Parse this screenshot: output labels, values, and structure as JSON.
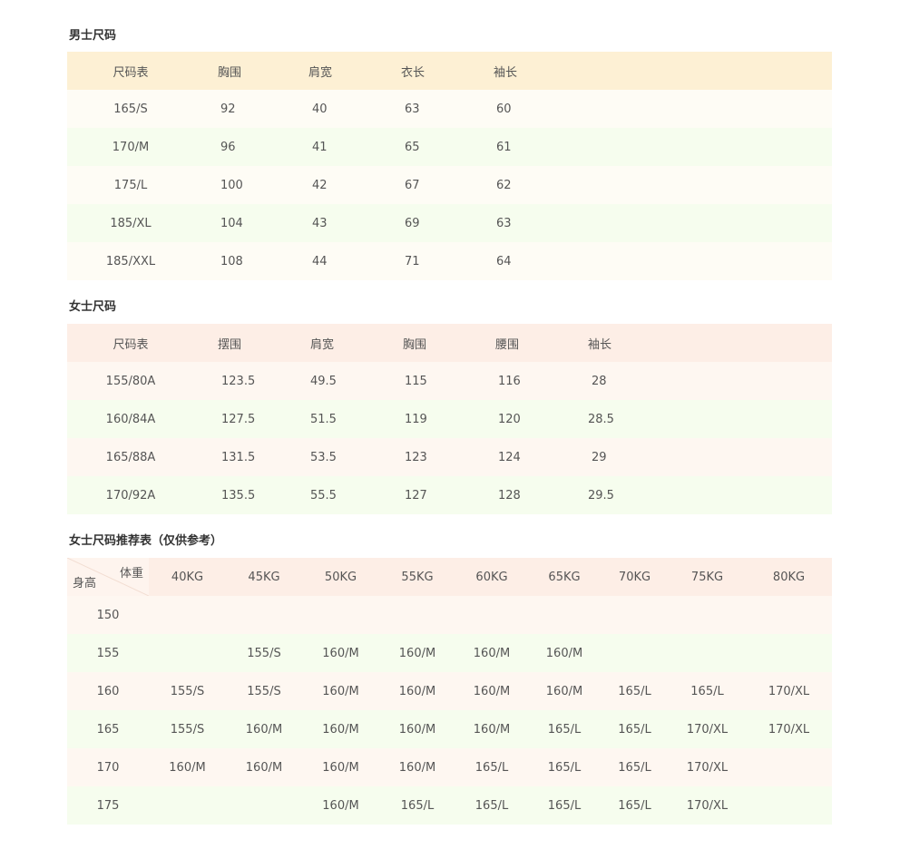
{
  "men": {
    "title": "男士尺码",
    "headers": [
      "尺码表",
      "胸围",
      "肩宽",
      "衣长",
      "袖长"
    ],
    "rows": [
      [
        "165/S",
        "92",
        "40",
        "63",
        "60"
      ],
      [
        "170/M",
        "96",
        "41",
        "65",
        "61"
      ],
      [
        "175/L",
        "100",
        "42",
        "67",
        "62"
      ],
      [
        "185/XL",
        "104",
        "43",
        "69",
        "63"
      ],
      [
        "185/XXL",
        "108",
        "44",
        "71",
        "64"
      ]
    ]
  },
  "women": {
    "title": "女士尺码",
    "headers": [
      "尺码表",
      "摆围",
      "肩宽",
      "胸围",
      "腰围",
      "袖长"
    ],
    "rows": [
      [
        "155/80A",
        "123.5",
        "49.5",
        "115",
        "116",
        "28"
      ],
      [
        "160/84A",
        "127.5",
        "51.5",
        "119",
        "120",
        "28.5"
      ],
      [
        "165/88A",
        "131.5",
        "53.5",
        "123",
        "124",
        "29"
      ],
      [
        "170/92A",
        "135.5",
        "55.5",
        "127",
        "128",
        "29.5"
      ]
    ]
  },
  "recommend": {
    "title": "女士尺码推荐表（仅供参考）",
    "corner_top": "体重",
    "corner_bottom": "身高",
    "weights": [
      "40KG",
      "45KG",
      "50KG",
      "55KG",
      "60KG",
      "65KG",
      "70KG",
      "75KG",
      "80KG"
    ],
    "rows": [
      [
        "150",
        "",
        "",
        "",
        "",
        "",
        "",
        "",
        "",
        ""
      ],
      [
        "155",
        "",
        "155/S",
        "160/M",
        "160/M",
        "160/M",
        "160/M",
        "",
        "",
        ""
      ],
      [
        "160",
        "155/S",
        "155/S",
        "160/M",
        "160/M",
        "160/M",
        "160/M",
        "165/L",
        "165/L",
        "170/XL"
      ],
      [
        "165",
        "155/S",
        "160/M",
        "160/M",
        "160/M",
        "160/M",
        "165/L",
        "165/L",
        "170/XL",
        "170/XL"
      ],
      [
        "170",
        "160/M",
        "160/M",
        "160/M",
        "160/M",
        "165/L",
        "165/L",
        "165/L",
        "170/XL",
        ""
      ],
      [
        "175",
        "",
        "",
        "160/M",
        "165/L",
        "165/L",
        "165/L",
        "165/L",
        "170/XL",
        ""
      ]
    ]
  }
}
